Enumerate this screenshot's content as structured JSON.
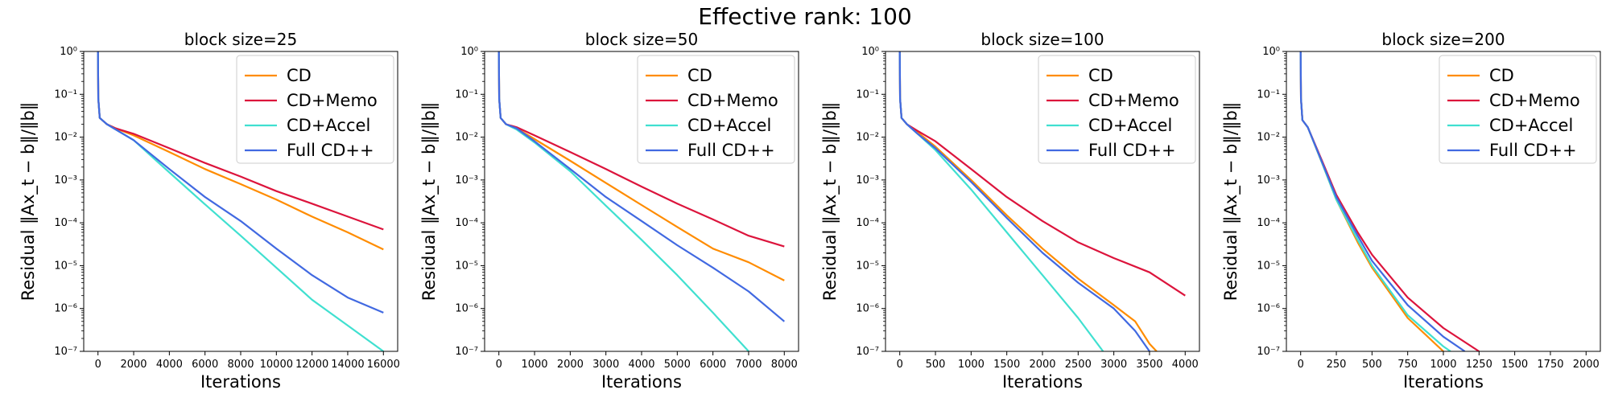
{
  "figure": {
    "suptitle": "Effective rank: 100"
  },
  "colors": {
    "CD": "#ff8c00",
    "CD+Memo": "#dc143c",
    "CD+Accel": "#40e0d0",
    "Full CD++": "#4169e1"
  },
  "chart_data": [
    {
      "type": "line",
      "title": "block size=25",
      "xlabel": "Iterations",
      "ylabel": "Residual ‖Ax_t − b‖/‖b‖",
      "yscale": "log",
      "xlim": [
        -800,
        16800
      ],
      "ylim": [
        1e-07,
        1
      ],
      "xticks": [
        0,
        2000,
        4000,
        6000,
        8000,
        10000,
        12000,
        14000,
        16000
      ],
      "legend": {
        "position": "top-right",
        "entries": [
          "CD",
          "CD+Memo",
          "CD+Accel",
          "Full CD++"
        ]
      },
      "grid": false,
      "series": [
        {
          "name": "CD",
          "x": [
            0,
            15,
            100,
            500,
            1000,
            2000,
            4000,
            6000,
            8000,
            10000,
            12000,
            14000,
            16000
          ],
          "y": [
            1,
            0.08,
            0.028,
            0.02,
            0.016,
            0.011,
            0.0045,
            0.0018,
            0.0008,
            0.00035,
            0.00014,
            6e-05,
            2.4e-05
          ]
        },
        {
          "name": "CD+Memo",
          "x": [
            0,
            15,
            100,
            500,
            1000,
            2000,
            4000,
            6000,
            8000,
            10000,
            12000,
            14000,
            16000
          ],
          "y": [
            1,
            0.08,
            0.028,
            0.02,
            0.016,
            0.012,
            0.0055,
            0.0025,
            0.0012,
            0.00055,
            0.00028,
            0.00014,
            7e-05
          ]
        },
        {
          "name": "CD+Accel",
          "x": [
            0,
            15,
            100,
            500,
            1000,
            2000,
            4000,
            6000,
            8000,
            10000,
            12000,
            14000,
            16000
          ],
          "y": [
            1,
            0.08,
            0.028,
            0.02,
            0.015,
            0.0085,
            0.0015,
            0.00027,
            5e-05,
            9e-06,
            1.6e-06,
            4e-07,
            1e-07
          ]
        },
        {
          "name": "Full CD++",
          "x": [
            0,
            15,
            100,
            500,
            1000,
            2000,
            4000,
            6000,
            8000,
            10000,
            12000,
            14000,
            16000
          ],
          "y": [
            1,
            0.08,
            0.028,
            0.02,
            0.015,
            0.0085,
            0.0018,
            0.0004,
            0.00011,
            2.5e-05,
            6e-06,
            1.8e-06,
            8e-07
          ]
        }
      ]
    },
    {
      "type": "line",
      "title": "block size=50",
      "xlabel": "Iterations",
      "ylabel": "Residual ‖Ax_t − b‖/‖b‖",
      "yscale": "log",
      "xlim": [
        -400,
        8400
      ],
      "ylim": [
        1e-07,
        1
      ],
      "xticks": [
        0,
        1000,
        2000,
        3000,
        4000,
        5000,
        6000,
        7000,
        8000
      ],
      "legend": {
        "position": "top-right",
        "entries": [
          "CD",
          "CD+Memo",
          "CD+Accel",
          "Full CD++"
        ]
      },
      "grid": false,
      "series": [
        {
          "name": "CD",
          "x": [
            0,
            8,
            50,
            200,
            500,
            1000,
            2000,
            3000,
            4000,
            5000,
            6000,
            7000,
            8000
          ],
          "y": [
            1,
            0.08,
            0.028,
            0.02,
            0.016,
            0.009,
            0.0028,
            0.00085,
            0.00026,
            8e-05,
            2.5e-05,
            1.2e-05,
            4.5e-06
          ]
        },
        {
          "name": "CD+Memo",
          "x": [
            0,
            8,
            50,
            200,
            500,
            1000,
            2000,
            3000,
            4000,
            5000,
            6000,
            7000,
            8000
          ],
          "y": [
            1,
            0.08,
            0.028,
            0.02,
            0.017,
            0.011,
            0.0045,
            0.0018,
            0.0007,
            0.00028,
            0.00012,
            5e-05,
            2.8e-05
          ]
        },
        {
          "name": "CD+Accel",
          "x": [
            0,
            8,
            50,
            200,
            500,
            1000,
            2000,
            3000,
            4000,
            5000,
            6000,
            7000
          ],
          "y": [
            1,
            0.08,
            0.028,
            0.02,
            0.015,
            0.0075,
            0.0016,
            0.00025,
            4e-05,
            6e-06,
            8e-07,
            1e-07
          ]
        },
        {
          "name": "Full CD++",
          "x": [
            0,
            8,
            50,
            200,
            500,
            1000,
            2000,
            3000,
            4000,
            5000,
            6000,
            7000,
            8000
          ],
          "y": [
            1,
            0.08,
            0.028,
            0.02,
            0.016,
            0.008,
            0.0018,
            0.0004,
            0.00011,
            3e-05,
            9e-06,
            2.5e-06,
            5e-07
          ]
        }
      ]
    },
    {
      "type": "line",
      "title": "block size=100",
      "xlabel": "Iterations",
      "ylabel": "Residual ‖Ax_t − b‖/‖b‖",
      "yscale": "log",
      "xlim": [
        -200,
        4200
      ],
      "ylim": [
        1e-07,
        1
      ],
      "xticks": [
        0,
        500,
        1000,
        1500,
        2000,
        2500,
        3000,
        3500,
        4000
      ],
      "legend": {
        "position": "top-right",
        "entries": [
          "CD",
          "CD+Memo",
          "CD+Accel",
          "Full CD++"
        ]
      },
      "grid": false,
      "series": [
        {
          "name": "CD",
          "x": [
            0,
            4,
            25,
            100,
            250,
            500,
            1000,
            1500,
            2000,
            2500,
            3000,
            3300,
            3500,
            3600
          ],
          "y": [
            1,
            0.08,
            0.028,
            0.02,
            0.013,
            0.006,
            0.001,
            0.00015,
            2.5e-05,
            5e-06,
            1.2e-06,
            5e-07,
            1.5e-07,
            1e-07
          ]
        },
        {
          "name": "CD+Memo",
          "x": [
            0,
            4,
            25,
            100,
            250,
            500,
            1000,
            1500,
            2000,
            2500,
            3000,
            3500,
            4000
          ],
          "y": [
            1,
            0.08,
            0.028,
            0.02,
            0.014,
            0.008,
            0.0018,
            0.0004,
            0.00011,
            3.5e-05,
            1.5e-05,
            7e-06,
            2e-06
          ]
        },
        {
          "name": "CD+Accel",
          "x": [
            0,
            4,
            25,
            100,
            250,
            500,
            1000,
            1500,
            2000,
            2500,
            2850
          ],
          "y": [
            1,
            0.08,
            0.028,
            0.02,
            0.012,
            0.005,
            0.0006,
            6e-05,
            6e-06,
            6e-07,
            1e-07
          ]
        },
        {
          "name": "Full CD++",
          "x": [
            0,
            4,
            25,
            100,
            250,
            500,
            1000,
            1500,
            2000,
            2500,
            3000,
            3300,
            3500
          ],
          "y": [
            1,
            0.08,
            0.028,
            0.02,
            0.012,
            0.0055,
            0.0009,
            0.00013,
            2e-05,
            4e-06,
            1e-06,
            3e-07,
            1e-07
          ]
        }
      ]
    },
    {
      "type": "line",
      "title": "block size=200",
      "xlabel": "Iterations",
      "ylabel": "Residual ‖Ax_t − b‖/‖b‖",
      "yscale": "log",
      "xlim": [
        -100,
        2100
      ],
      "ylim": [
        1e-07,
        1
      ],
      "xticks": [
        0,
        250,
        500,
        750,
        1000,
        1250,
        1500,
        1750,
        2000
      ],
      "legend": {
        "position": "top-right",
        "entries": [
          "CD",
          "CD+Memo",
          "CD+Accel",
          "Full CD++"
        ]
      },
      "grid": false,
      "series": [
        {
          "name": "CD",
          "x": [
            0,
            2,
            12,
            50,
            150,
            250,
            400,
            500,
            750,
            1000
          ],
          "y": [
            1,
            0.08,
            0.025,
            0.017,
            0.0025,
            0.00035,
            3.5e-05,
            9e-06,
            6e-07,
            1e-07
          ]
        },
        {
          "name": "CD+Memo",
          "x": [
            0,
            2,
            12,
            50,
            150,
            250,
            400,
            500,
            750,
            1000,
            1250
          ],
          "y": [
            1,
            0.08,
            0.025,
            0.017,
            0.0028,
            0.00045,
            6e-05,
            1.8e-05,
            1.8e-06,
            3.5e-07,
            1e-07
          ]
        },
        {
          "name": "CD+Accel",
          "x": [
            0,
            2,
            12,
            50,
            150,
            250,
            400,
            500,
            750,
            1000,
            1050
          ],
          "y": [
            1,
            0.08,
            0.025,
            0.017,
            0.0025,
            0.00035,
            4e-05,
            1e-05,
            7e-07,
            1.3e-07,
            1e-07
          ]
        },
        {
          "name": "Full CD++",
          "x": [
            0,
            2,
            12,
            50,
            150,
            250,
            400,
            500,
            750,
            1000,
            1150
          ],
          "y": [
            1,
            0.08,
            0.025,
            0.017,
            0.0026,
            0.0004,
            5e-05,
            1.3e-05,
            1.2e-06,
            2.2e-07,
            1e-07
          ]
        }
      ]
    }
  ]
}
